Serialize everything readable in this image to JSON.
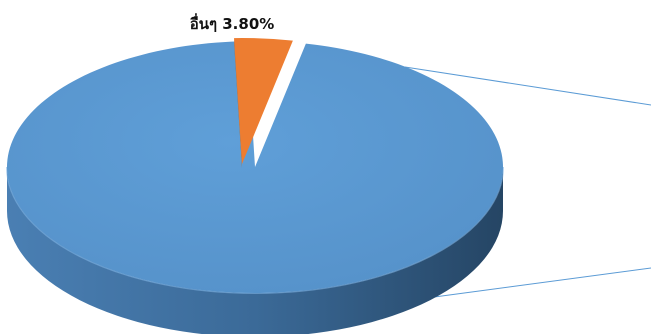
{
  "chart_data": {
    "type": "pie",
    "style": "3d-exploded",
    "slices": [
      {
        "label": "อื่นๆ",
        "percent_text": "3.80%",
        "value": 3.8,
        "color": "#ED7D31",
        "side_color": "#B8611F"
      },
      {
        "label": "",
        "percent_text": "",
        "value": 96.2,
        "color": "#5B9BD5",
        "side_color": "#3F6E97"
      }
    ],
    "connector_color": "#5B9BD5"
  }
}
